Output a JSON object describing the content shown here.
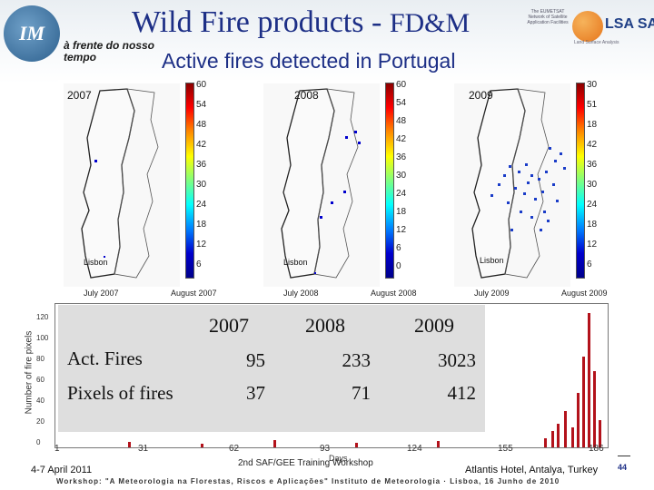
{
  "header": {
    "title_main": "Wild Fire products - ",
    "title_tail": "FD&M",
    "tagline": "à frente do nosso tempo",
    "subtitle": "Active fires detected in Portugal",
    "eumetsat_text": "The EUMETSAT Network of Satellite Application Facilities",
    "lsa_label": "LSA SAF",
    "lsa_sub": "Land Surface Analysis",
    "logo_text": "IM"
  },
  "maps": [
    {
      "year": "2007",
      "ticks": [
        "60",
        "54",
        "48",
        "42",
        "36",
        "30",
        "24",
        "18",
        "12",
        "6"
      ],
      "lisbon": "Lisbon",
      "date_left": "July 2007",
      "date_right": "August 2007"
    },
    {
      "year": "2008",
      "ticks": [
        "60",
        "54",
        "48",
        "42",
        "36",
        "30",
        "24",
        "18",
        "12",
        "6",
        "0"
      ],
      "lisbon": "Lisbon",
      "date_left": "July 2008",
      "date_right": "August 2008"
    },
    {
      "year": "2009",
      "ticks": [
        "30",
        "51",
        "18",
        "42",
        "36",
        "30",
        "24",
        "18",
        "12",
        "6"
      ],
      "lisbon": "Lisbon",
      "date_left": "July 2009",
      "date_right": "August 2009"
    }
  ],
  "table": {
    "headers": [
      "2007",
      "2008",
      "2009"
    ],
    "rows": [
      {
        "label": "Act. Fires",
        "values": [
          "95",
          "233",
          "3023"
        ]
      },
      {
        "label": "Pixels of fires",
        "values": [
          "37",
          "71",
          "412"
        ]
      }
    ]
  },
  "chart": {
    "y_label": "Number of fire pixels",
    "y_ticks": [
      "120",
      "100",
      "80",
      "60",
      "40",
      "20",
      "0"
    ],
    "x_ticks": [
      "1",
      "31",
      "62",
      "93",
      "124",
      "155",
      "186"
    ],
    "x_title": "Days",
    "bar_color": "#b3121b"
  },
  "footer": {
    "date": "4-7 April 2011",
    "center": "2nd SAF/GEE Training Workshop",
    "right": "Atlantis Hotel, Antalya, Turkey",
    "strip": "Workshop: \"A Meteorologia na Florestas, Riscos e Aplicações\" Instituto de Meteorologia · Lisboa, 16 Junho de 2010",
    "page": "44"
  }
}
